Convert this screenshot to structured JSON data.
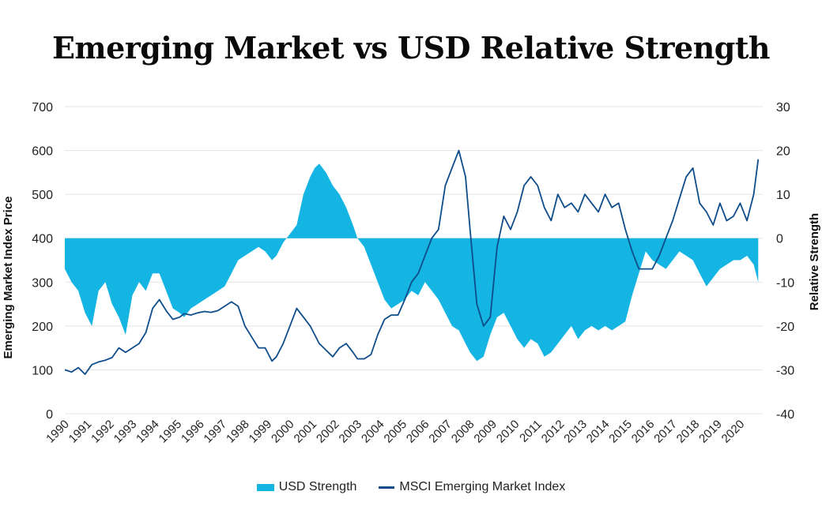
{
  "chart_data": {
    "type": "area+line",
    "title": "Emerging Market vs USD Relative Strength",
    "ylabel_left": "Emerging Market Index Price",
    "ylabel_right": "Relative Strength",
    "ylim_left": [
      0,
      700
    ],
    "ylim_right": [
      -40,
      30
    ],
    "yticks_left": [
      "0",
      "100",
      "200",
      "300",
      "400",
      "500",
      "600",
      "700"
    ],
    "yticks_right": [
      "-40",
      "-30",
      "-20",
      "-10",
      "0",
      "10",
      "20",
      "30"
    ],
    "x_categories": [
      "1990",
      "1991",
      "1992",
      "1993",
      "1994",
      "1995",
      "1996",
      "1997",
      "1998",
      "1999",
      "2000",
      "2001",
      "2002",
      "2003",
      "2004",
      "2005",
      "2006",
      "2007",
      "2008",
      "2009",
      "2010",
      "2011",
      "2012",
      "2013",
      "2014",
      "2015",
      "2016",
      "2017",
      "2018",
      "2019",
      "2020"
    ],
    "grid": true,
    "legend_position": "bottom",
    "colors": {
      "area": "#14b4e3",
      "line": "#0f4c8a",
      "grid": "#e3e3e3"
    },
    "series": [
      {
        "name": "USD Strength",
        "type": "area",
        "axis": "right",
        "x": [
          1990.0,
          1990.3,
          1990.6,
          1990.9,
          1991.2,
          1991.5,
          1991.8,
          1992.1,
          1992.4,
          1992.7,
          1993.0,
          1993.3,
          1993.6,
          1993.9,
          1994.2,
          1994.5,
          1994.8,
          1995.1,
          1995.3,
          1995.6,
          1995.9,
          1996.2,
          1996.5,
          1996.8,
          1997.1,
          1997.4,
          1997.7,
          1998.0,
          1998.3,
          1998.6,
          1998.9,
          1999.2,
          1999.4,
          1999.7,
          2000.0,
          2000.3,
          2000.6,
          2000.9,
          2001.1,
          2001.3,
          2001.6,
          2001.9,
          2002.2,
          2002.5,
          2002.8,
          2003.0,
          2003.3,
          2003.6,
          2003.9,
          2004.2,
          2004.5,
          2004.8,
          2005.1,
          2005.4,
          2005.7,
          2006.0,
          2006.3,
          2006.6,
          2006.9,
          2007.2,
          2007.5,
          2007.8,
          2008.0,
          2008.3,
          2008.6,
          2008.9,
          2009.2,
          2009.5,
          2009.8,
          2010.1,
          2010.4,
          2010.7,
          2011.0,
          2011.3,
          2011.6,
          2011.9,
          2012.2,
          2012.5,
          2012.8,
          2013.1,
          2013.4,
          2013.7,
          2014.0,
          2014.3,
          2014.6,
          2014.9,
          2015.2,
          2015.5,
          2015.8,
          2016.1,
          2016.4,
          2016.7,
          2017.0,
          2017.3,
          2017.6,
          2017.9,
          2018.2,
          2018.5,
          2018.8,
          2019.1,
          2019.4,
          2019.7,
          2020.0,
          2020.3,
          2020.6,
          2020.8
        ],
        "values": [
          -7,
          -10,
          -12,
          -17,
          -20,
          -12,
          -10,
          -15,
          -18,
          -22,
          -13,
          -10,
          -12,
          -8,
          -8,
          -12,
          -16,
          -17,
          -18,
          -16,
          -15,
          -14,
          -13,
          -12,
          -11,
          -8,
          -5,
          -4,
          -3,
          -2,
          -3,
          -5,
          -4,
          -1,
          1,
          3,
          10,
          14,
          16,
          17,
          15,
          12,
          10,
          7,
          3,
          0,
          -2,
          -6,
          -10,
          -14,
          -16,
          -15,
          -14,
          -12,
          -13,
          -10,
          -12,
          -14,
          -17,
          -20,
          -21,
          -24,
          -26,
          -28,
          -27,
          -22,
          -18,
          -17,
          -20,
          -23,
          -25,
          -23,
          -24,
          -27,
          -26,
          -24,
          -22,
          -20,
          -23,
          -21,
          -20,
          -21,
          -20,
          -21,
          -20,
          -19,
          -13,
          -8,
          -3,
          -5,
          -6,
          -7,
          -5,
          -3,
          -4,
          -5,
          -8,
          -11,
          -9,
          -7,
          -6,
          -5,
          -5,
          -4,
          -6,
          -10
        ]
      },
      {
        "name": "MSCI Emerging Market Index",
        "type": "line",
        "axis": "left",
        "x": [
          1990.0,
          1990.3,
          1990.6,
          1990.9,
          1991.2,
          1991.5,
          1991.8,
          1992.1,
          1992.4,
          1992.7,
          1993.0,
          1993.3,
          1993.6,
          1993.9,
          1994.2,
          1994.5,
          1994.8,
          1995.1,
          1995.3,
          1995.6,
          1995.9,
          1996.2,
          1996.5,
          1996.8,
          1997.1,
          1997.4,
          1997.7,
          1998.0,
          1998.3,
          1998.6,
          1998.9,
          1999.2,
          1999.4,
          1999.7,
          2000.0,
          2000.3,
          2000.6,
          2000.9,
          2001.1,
          2001.3,
          2001.6,
          2001.9,
          2002.2,
          2002.5,
          2002.8,
          2003.0,
          2003.3,
          2003.6,
          2003.9,
          2004.2,
          2004.5,
          2004.8,
          2005.1,
          2005.4,
          2005.7,
          2006.0,
          2006.3,
          2006.6,
          2006.9,
          2007.2,
          2007.5,
          2007.8,
          2008.0,
          2008.3,
          2008.6,
          2008.9,
          2009.2,
          2009.5,
          2009.8,
          2010.1,
          2010.4,
          2010.7,
          2011.0,
          2011.3,
          2011.6,
          2011.9,
          2012.2,
          2012.5,
          2012.8,
          2013.1,
          2013.4,
          2013.7,
          2014.0,
          2014.3,
          2014.6,
          2014.9,
          2015.2,
          2015.5,
          2015.8,
          2016.1,
          2016.4,
          2016.7,
          2017.0,
          2017.3,
          2017.6,
          2017.9,
          2018.2,
          2018.5,
          2018.8,
          2019.1,
          2019.4,
          2019.7,
          2020.0,
          2020.3,
          2020.6,
          2020.8
        ],
        "values": [
          100,
          95,
          105,
          90,
          112,
          118,
          122,
          128,
          150,
          140,
          150,
          160,
          185,
          240,
          260,
          235,
          215,
          220,
          228,
          225,
          230,
          233,
          231,
          235,
          245,
          255,
          245,
          200,
          175,
          150,
          150,
          120,
          130,
          160,
          200,
          240,
          220,
          200,
          180,
          160,
          145,
          130,
          150,
          160,
          140,
          125,
          125,
          135,
          180,
          215,
          225,
          225,
          260,
          300,
          320,
          360,
          400,
          420,
          520,
          560,
          600,
          540,
          420,
          250,
          200,
          220,
          380,
          450,
          420,
          460,
          520,
          540,
          520,
          470,
          440,
          500,
          470,
          480,
          460,
          500,
          480,
          460,
          500,
          470,
          480,
          420,
          370,
          330,
          330,
          330,
          360,
          400,
          440,
          490,
          540,
          560,
          480,
          460,
          430,
          480,
          440,
          450,
          480,
          440,
          500,
          580
        ]
      }
    ]
  }
}
